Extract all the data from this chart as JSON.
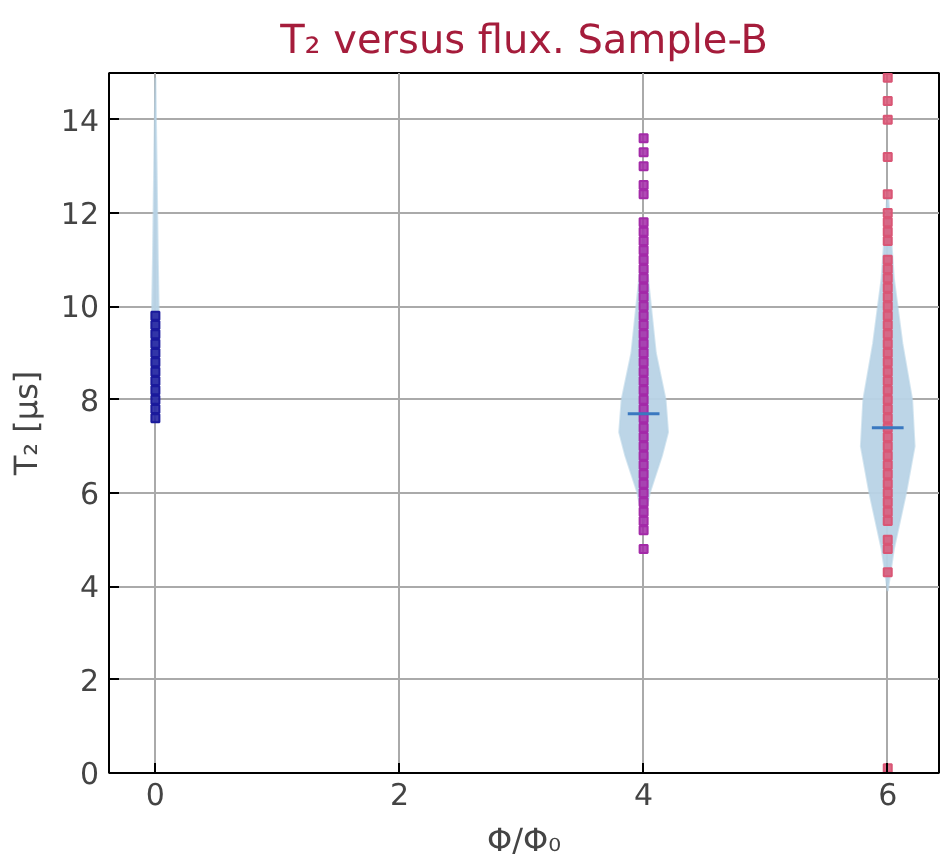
{
  "chart_data": {
    "type": "scatter",
    "title": "T₂ versus flux. Sample-B",
    "xlabel": "Φ/Φ₀",
    "ylabel": "T₂ [μs]",
    "xlim": [
      -0.38,
      6.42
    ],
    "ylim": [
      0,
      15
    ],
    "xticks": [
      0,
      2,
      4,
      6
    ],
    "yticks": [
      0,
      2,
      4,
      6,
      8,
      10,
      12,
      14
    ],
    "grid": true,
    "marker": "square",
    "series": [
      {
        "type": "area",
        "marker": "none",
        "color": "#b8d3e6",
        "x": [
          0,
          0.02,
          0.03,
          0.02,
          0.01,
          0,
          -0.01,
          -0.02,
          -0.03,
          -0.02,
          0
        ],
        "values": [
          7.6,
          8.2,
          9.5,
          11,
          13,
          14.9,
          13,
          11,
          9.5,
          8.2,
          7.6
        ]
      },
      {
        "type": "area",
        "marker": "none",
        "color": "#b8d3e6",
        "x": [
          4,
          4.05,
          4.15,
          4.2,
          4.18,
          4.1,
          4.04,
          4,
          3.96,
          3.9,
          3.82,
          3.8,
          3.85,
          3.95,
          4
        ],
        "values": [
          5.3,
          6,
          6.8,
          7.3,
          8,
          9,
          10.5,
          11.7,
          10.5,
          9,
          8,
          7.3,
          6.8,
          6,
          5.3
        ]
      },
      {
        "type": "area",
        "marker": "none",
        "color": "#b8d3e6",
        "x": [
          6,
          6.05,
          6.15,
          6.22,
          6.2,
          6.12,
          6.05,
          6,
          5.95,
          5.88,
          5.8,
          5.78,
          5.85,
          5.95,
          6
        ],
        "values": [
          3.9,
          4.8,
          6,
          7,
          8,
          9.2,
          10.6,
          12.5,
          10.6,
          9.2,
          8,
          7,
          6,
          4.8,
          3.9
        ]
      },
      {
        "color": "#1a1a9c",
        "x": [
          0,
          0,
          0,
          0,
          0,
          0,
          0,
          0,
          0,
          0,
          0,
          0
        ],
        "values": [
          7.6,
          7.8,
          8.0,
          8.2,
          8.4,
          8.6,
          8.8,
          9.0,
          9.2,
          9.4,
          9.6,
          9.8
        ]
      },
      {
        "color": "#a32aa8",
        "x": [
          4,
          4,
          4,
          4,
          4,
          4,
          4,
          4,
          4,
          4,
          4,
          4,
          4,
          4,
          4,
          4,
          4,
          4,
          4,
          4,
          4,
          4,
          4,
          4,
          4,
          4,
          4,
          4,
          4,
          4,
          4,
          4,
          4,
          4,
          4,
          4,
          4,
          4,
          4,
          4
        ],
        "values": [
          4.8,
          5.2,
          5.4,
          5.6,
          5.8,
          6.0,
          6.2,
          6.4,
          6.6,
          6.8,
          7.0,
          7.2,
          7.4,
          7.6,
          7.8,
          8.0,
          8.2,
          8.4,
          8.6,
          8.8,
          9.0,
          9.2,
          9.4,
          9.6,
          9.8,
          10.0,
          10.2,
          10.4,
          10.6,
          10.8,
          11.0,
          11.2,
          11.4,
          11.6,
          11.8,
          12.4,
          12.6,
          13.0,
          13.3,
          13.6
        ]
      },
      {
        "color": "#d95675",
        "x": [
          6,
          6,
          6,
          6,
          6,
          6,
          6,
          6,
          6,
          6,
          6,
          6,
          6,
          6,
          6,
          6,
          6,
          6,
          6,
          6,
          6,
          6,
          6,
          6,
          6,
          6,
          6,
          6,
          6,
          6,
          6,
          6,
          6,
          6,
          6,
          6,
          6,
          6,
          6,
          6,
          6,
          6
        ],
        "values": [
          0.1,
          4.3,
          4.8,
          5.0,
          5.4,
          5.6,
          5.8,
          6.0,
          6.2,
          6.4,
          6.6,
          6.8,
          7.0,
          7.2,
          7.4,
          7.6,
          7.8,
          8.0,
          8.2,
          8.4,
          8.6,
          8.8,
          9.0,
          9.2,
          9.4,
          9.6,
          9.8,
          10.0,
          10.2,
          10.4,
          10.6,
          10.8,
          11.0,
          11.4,
          11.6,
          11.8,
          12.0,
          12.4,
          13.2,
          14.0,
          14.4,
          14.9
        ]
      },
      {
        "type": "line",
        "marker": "none",
        "color": "#3a78c0",
        "x": [
          3.87,
          4.13
        ],
        "values": [
          7.7,
          7.7
        ]
      },
      {
        "type": "line",
        "marker": "none",
        "color": "#3a78c0",
        "x": [
          5.87,
          6.13
        ],
        "values": [
          7.4,
          7.4
        ]
      }
    ]
  }
}
